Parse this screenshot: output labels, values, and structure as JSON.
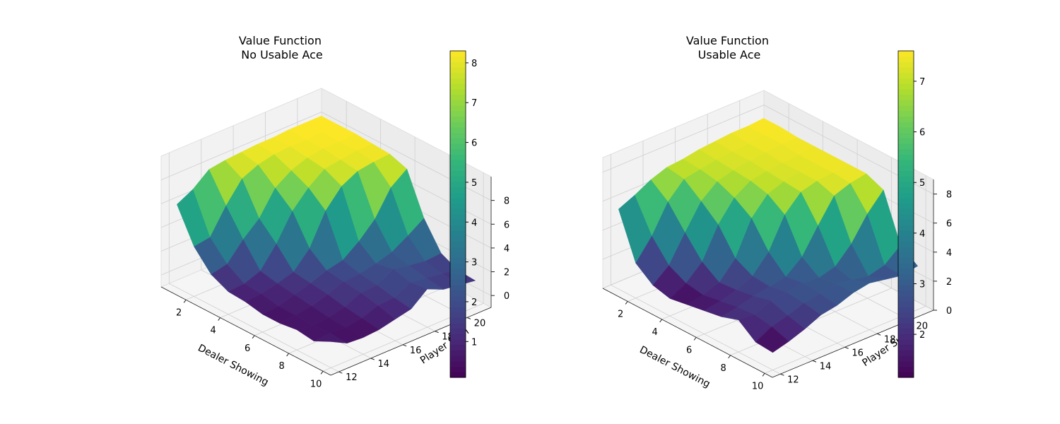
{
  "chart_data": [
    {
      "type": "surface3d",
      "title": "Value Function\nNo Usable Ace",
      "xlabel": "Dealer Showing",
      "ylabel": "Player Sum",
      "zlabel": "",
      "x": [
        1,
        2,
        3,
        4,
        5,
        6,
        7,
        8,
        9,
        10
      ],
      "y": [
        12,
        13,
        14,
        15,
        16,
        17,
        18,
        19,
        20,
        21
      ],
      "xticks": [
        2,
        4,
        6,
        8,
        10
      ],
      "yticks": [
        12,
        14,
        16,
        18,
        20
      ],
      "zticks": [
        0,
        2,
        4,
        6,
        8
      ],
      "zlim": [
        -1,
        10
      ],
      "colormap": "viridis",
      "colorbar": {
        "min": 0.1,
        "max": 8.3,
        "ticks": [
          1,
          2,
          3,
          4,
          5,
          6,
          7,
          8
        ]
      },
      "z": [
        [
          6.0,
          3.2,
          1.6,
          0.9,
          0.8,
          0.5,
          0.5,
          0.7,
          0.5,
          1.2
        ],
        [
          6.7,
          3.4,
          1.9,
          1.0,
          0.9,
          0.6,
          0.6,
          0.5,
          0.6,
          0.5
        ],
        [
          7.8,
          5.5,
          3.4,
          1.5,
          1.2,
          1.0,
          0.8,
          0.6,
          0.5,
          0.4
        ],
        [
          8.0,
          7.2,
          4.6,
          3.2,
          1.6,
          1.4,
          1.2,
          0.9,
          0.7,
          0.5
        ],
        [
          8.1,
          7.8,
          6.6,
          5.4,
          3.0,
          1.9,
          1.7,
          1.5,
          1.2,
          0.8
        ],
        [
          8.2,
          8.1,
          7.5,
          6.8,
          5.6,
          2.2,
          1.8,
          1.6,
          1.3,
          1.1
        ],
        [
          8.2,
          8.2,
          8.0,
          7.8,
          7.1,
          3.2,
          2.1,
          2.4,
          2.0,
          2.2
        ],
        [
          8.3,
          8.2,
          8.2,
          8.0,
          7.8,
          4.5,
          2.5,
          2.1,
          1.8,
          1.6
        ],
        [
          8.3,
          8.3,
          8.2,
          8.2,
          8.0,
          6.6,
          3.3,
          1.9,
          1.6,
          1.4
        ],
        [
          8.3,
          8.3,
          8.3,
          8.2,
          8.1,
          7.6,
          4.2,
          2.0,
          1.3,
          1.2
        ]
      ]
    },
    {
      "type": "surface3d",
      "title": "Value Function\nUsable Ace",
      "xlabel": "Dealer Showing",
      "ylabel": "Player Sum",
      "zlabel": "",
      "x": [
        1,
        2,
        3,
        4,
        5,
        6,
        7,
        8,
        9,
        10
      ],
      "y": [
        12,
        13,
        14,
        15,
        16,
        17,
        18,
        19,
        20,
        21
      ],
      "xticks": [
        2,
        4,
        6,
        8,
        10
      ],
      "yticks": [
        12,
        14,
        16,
        18,
        20
      ],
      "zticks": [
        0,
        2,
        4,
        6,
        8
      ],
      "zlim": [
        0,
        9
      ],
      "colormap": "viridis",
      "colorbar": {
        "min": 1.15,
        "max": 7.6,
        "ticks": [
          2,
          3,
          4,
          5,
          6,
          7
        ]
      },
      "z": [
        [
          5.5,
          2.4,
          1.5,
          1.2,
          1.4,
          1.6,
          1.8,
          2.2,
          1.3,
          1.2
        ],
        [
          6.0,
          3.8,
          2.4,
          1.8,
          1.6,
          1.8,
          2.0,
          2.1,
          1.9,
          1.5
        ],
        [
          6.6,
          5.7,
          4.2,
          2.8,
          2.0,
          2.1,
          2.3,
          2.6,
          2.2,
          1.9
        ],
        [
          7.0,
          6.8,
          5.9,
          4.9,
          3.2,
          2.6,
          2.5,
          2.7,
          2.6,
          2.4
        ],
        [
          7.1,
          7.0,
          6.8,
          6.3,
          5.5,
          3.8,
          2.7,
          2.9,
          2.8,
          2.6
        ],
        [
          7.3,
          7.2,
          7.1,
          7.0,
          6.7,
          5.9,
          3.6,
          2.8,
          3.0,
          3.0
        ],
        [
          7.4,
          7.3,
          7.3,
          7.2,
          7.1,
          7.0,
          5.3,
          3.1,
          2.8,
          3.2
        ],
        [
          7.5,
          7.4,
          7.4,
          7.3,
          7.3,
          7.3,
          6.9,
          4.2,
          2.6,
          3.0
        ],
        [
          7.5,
          7.5,
          7.5,
          7.4,
          7.4,
          7.4,
          7.3,
          5.8,
          2.9,
          2.8
        ],
        [
          7.6,
          7.6,
          7.5,
          7.5,
          7.5,
          7.5,
          7.5,
          7.0,
          3.8,
          3.0
        ]
      ]
    }
  ]
}
